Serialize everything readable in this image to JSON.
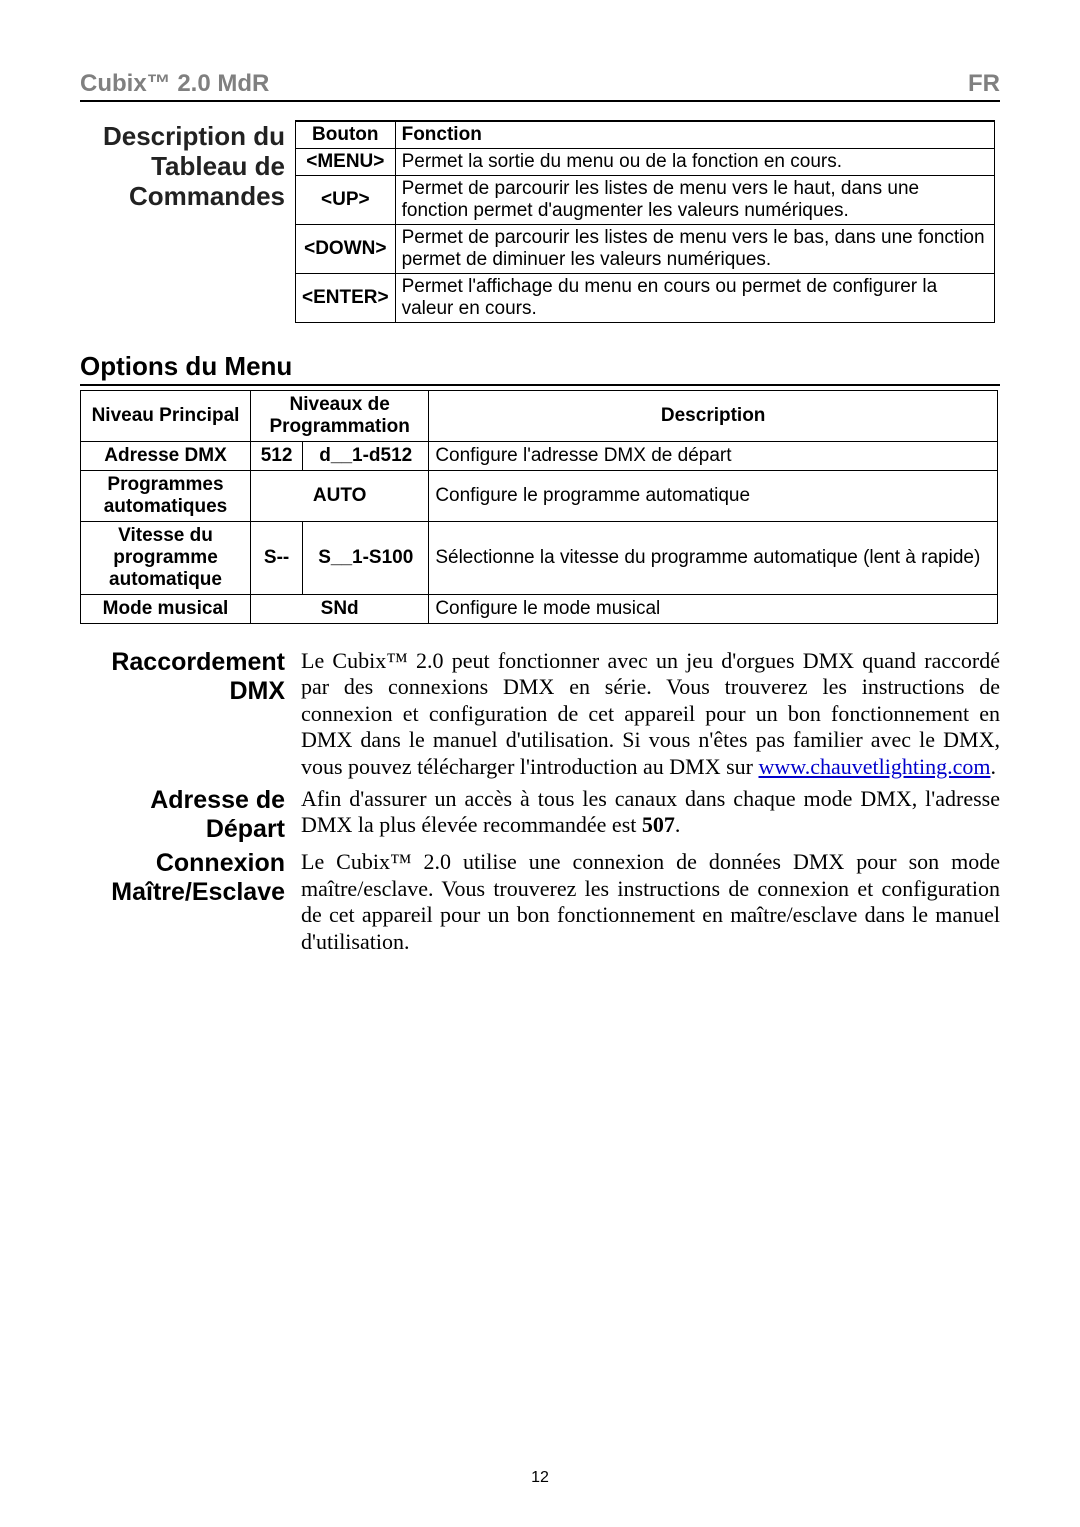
{
  "header": {
    "left": "Cubix™ 2.0 MdR",
    "right": "FR"
  },
  "section_commands": {
    "title": "Description du Tableau de Commandes",
    "table": {
      "headers": {
        "button": "Bouton",
        "function": "Fonction"
      },
      "rows": [
        {
          "button": "<MENU>",
          "function": "Permet la sortie du menu ou de la fonction en cours."
        },
        {
          "button": "<UP>",
          "function": "Permet de parcourir les listes de menu vers le haut, dans une fonction permet d'augmenter les valeurs numériques."
        },
        {
          "button": "<DOWN>",
          "function": "Permet de parcourir les listes de menu vers le bas, dans une fonction permet de diminuer les valeurs numériques."
        },
        {
          "button": "<ENTER>",
          "function": "Permet l'affichage du menu en cours ou permet de configurer la valeur en cours."
        }
      ]
    }
  },
  "section_options": {
    "title": "Options du Menu",
    "table": {
      "headers": {
        "main": "Niveau Principal",
        "prog": "Niveaux de Programmation",
        "desc": "Description"
      },
      "rows": [
        {
          "main": "Adresse DMX",
          "p1": "512",
          "p2": "d__1-d512",
          "desc": "Configure l'adresse DMX de départ"
        },
        {
          "main": "Programmes automatiques",
          "p12": "AUTO",
          "desc": "Configure le programme automatique"
        },
        {
          "main": "Vitesse du programme automatique",
          "p1": "S--",
          "p2": "S__1-S100",
          "desc": "Sélectionne la vitesse du programme automatique (lent à rapide)"
        },
        {
          "main": "Mode musical",
          "p12": "SNd",
          "desc": "Configure le mode musical"
        }
      ]
    }
  },
  "section_dmx": {
    "label": "Raccordement DMX",
    "body_pre": "Le Cubix™ 2.0 peut fonctionner avec un jeu d'orgues DMX quand raccordé par des connexions DMX en série. Vous trouverez les instructions de connexion et configuration de cet appareil pour un bon fonctionnement en DMX dans le manuel d'utilisation. Si vous n'êtes pas familier avec le DMX, vous pouvez télécharger l'introduction au DMX sur ",
    "link_text": "www.chauvetlighting.com",
    "body_post": "."
  },
  "section_addr": {
    "label": "Adresse de Départ",
    "body_pre": "Afin d'assurer un accès à tous les canaux dans chaque mode DMX, l'adresse DMX la plus élevée recommandée est ",
    "bold": "507",
    "body_post": "."
  },
  "section_ms": {
    "label": "Connexion Maître/Esclave",
    "body": "Le Cubix™ 2.0 utilise une connexion de données DMX pour son mode maître/esclave. Vous trouverez les instructions de connexion et configuration de cet appareil pour un bon fonctionnement en maître/esclave dans le manuel d'utilisation."
  },
  "page_number": "12"
}
